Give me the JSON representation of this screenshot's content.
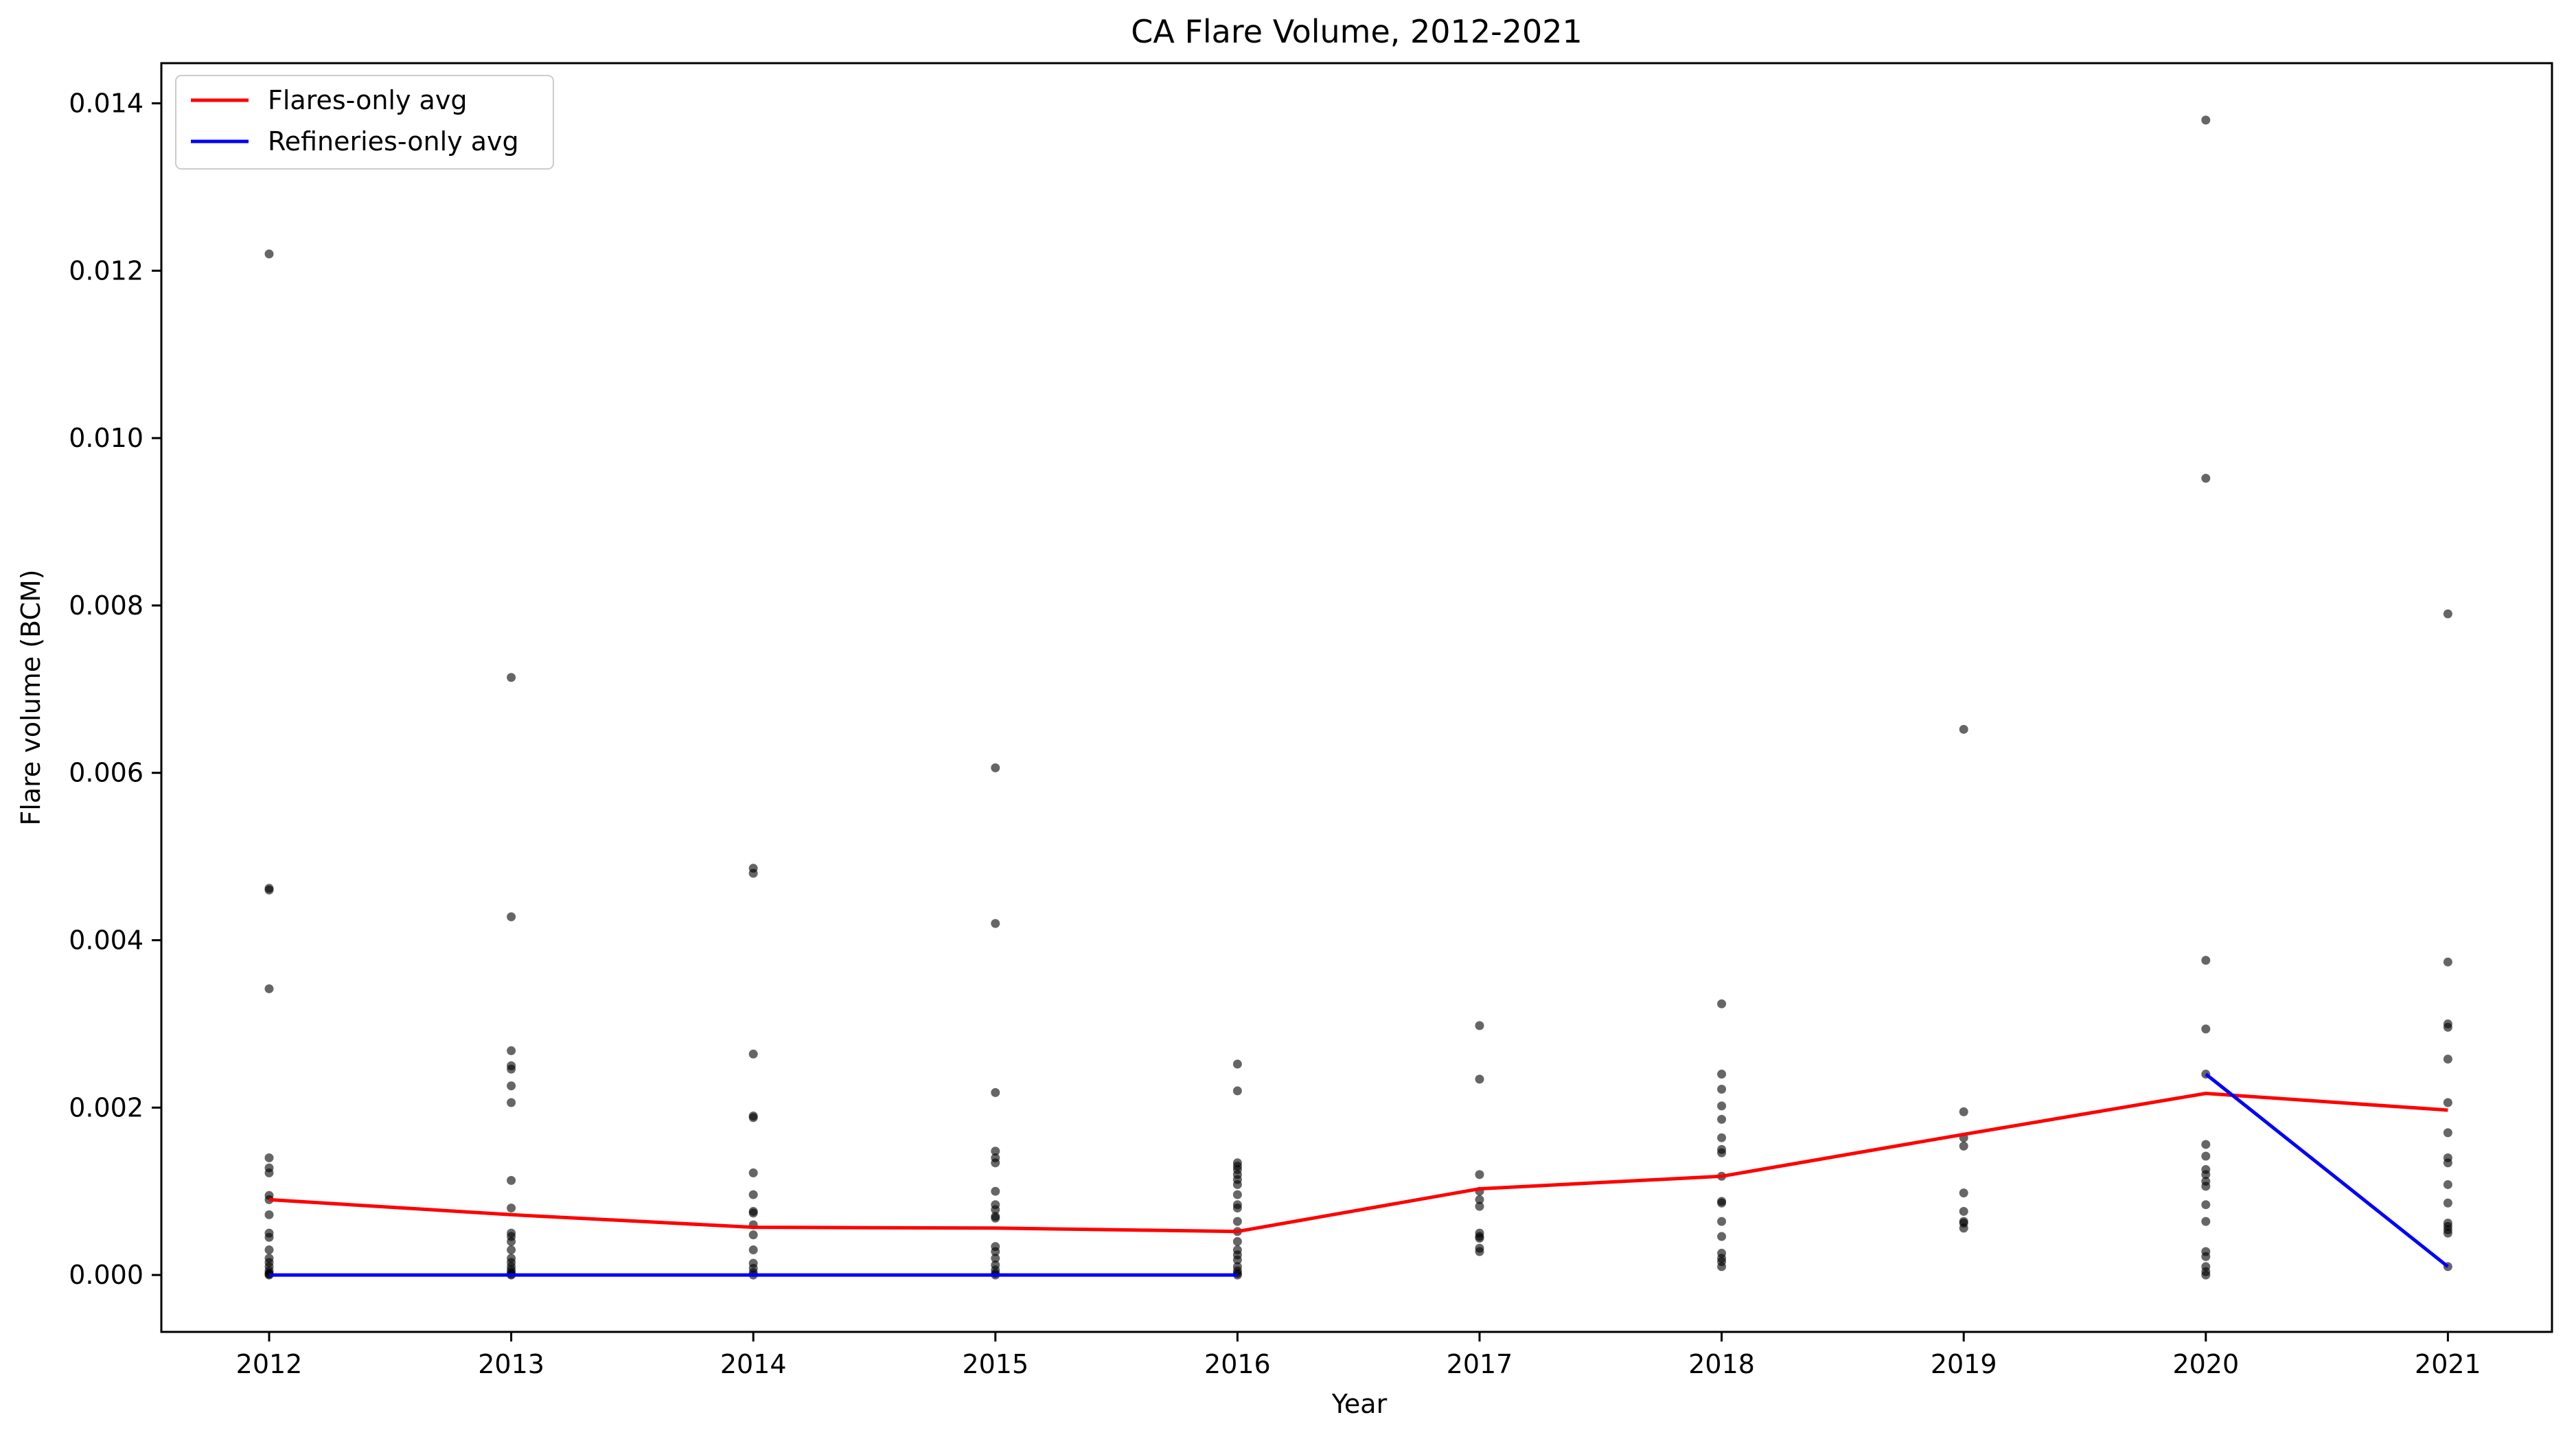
{
  "chart_data": {
    "type": "scatter",
    "title": "CA Flare Volume, 2012-2021",
    "xlabel": "Year",
    "ylabel": "Flare volume (BCM)",
    "categories": [
      "2012",
      "2013",
      "2014",
      "2015",
      "2016",
      "2017",
      "2018",
      "2019",
      "2020",
      "2021"
    ],
    "ylim": [
      -0.00068,
      0.01448
    ],
    "y_ticks": [
      "0.000",
      "0.002",
      "0.004",
      "0.006",
      "0.008",
      "0.010",
      "0.012",
      "0.014"
    ],
    "grid": false,
    "legend_position": "top-left",
    "scatter_points": {
      "2012": [
        0.0122,
        0.00462,
        0.0046,
        0.00342,
        0.0014,
        0.00128,
        0.00122,
        0.00095,
        0.0009,
        0.00072,
        0.0005,
        0.00045,
        0.0003,
        0.0002,
        0.00015,
        0.0001,
        5e-05,
        2e-05,
        1e-05,
        0.0
      ],
      "2013": [
        0.00714,
        0.00428,
        0.00268,
        0.0025,
        0.00246,
        0.00226,
        0.00206,
        0.00113,
        0.0008,
        0.0005,
        0.00046,
        0.0004,
        0.0003,
        0.0002,
        0.00015,
        0.0001,
        6e-05,
        3e-05,
        1e-05,
        0.0
      ],
      "2014": [
        0.00486,
        0.0048,
        0.00264,
        0.0019,
        0.00188,
        0.00122,
        0.00096,
        0.00076,
        0.00074,
        0.0006,
        0.00048,
        0.0003,
        0.00014,
        8e-05,
        3e-05,
        0.0
      ],
      "2015": [
        0.00606,
        0.0042,
        0.00218,
        0.00148,
        0.0014,
        0.00134,
        0.001,
        0.00084,
        0.00078,
        0.0007,
        0.00068,
        0.00034,
        0.00028,
        0.0002,
        0.00012,
        6e-05,
        2e-05,
        0.0
      ],
      "2016": [
        0.00252,
        0.0022,
        0.00134,
        0.0013,
        0.00126,
        0.0012,
        0.00114,
        0.00108,
        0.00096,
        0.00084,
        0.0008,
        0.00064,
        0.00052,
        0.0004,
        0.0003,
        0.00024,
        0.00018,
        0.0001,
        5e-05,
        2e-05,
        0.0
      ],
      "2017": [
        0.00298,
        0.00234,
        0.0012,
        0.001,
        0.0009,
        0.00082,
        0.0005,
        0.00046,
        0.00044,
        0.00032,
        0.00028
      ],
      "2018": [
        0.00324,
        0.0024,
        0.00222,
        0.00202,
        0.00186,
        0.00164,
        0.0015,
        0.00146,
        0.00118,
        0.00088,
        0.00086,
        0.00064,
        0.00046,
        0.00026,
        0.0002,
        0.00016,
        0.0001
      ],
      "2019": [
        0.00652,
        0.00195,
        0.00164,
        0.00154,
        0.00098,
        0.00076,
        0.00064,
        0.00062,
        0.00056
      ],
      "2020": [
        0.0138,
        0.00952,
        0.00376,
        0.00294,
        0.0024,
        0.00156,
        0.00142,
        0.00126,
        0.0012,
        0.00112,
        0.00106,
        0.00084,
        0.00064,
        0.00028,
        0.00022,
        0.0001,
        4e-05,
        0.0
      ],
      "2021": [
        0.0079,
        0.00374,
        0.003,
        0.00296,
        0.00258,
        0.00206,
        0.0017,
        0.0014,
        0.00134,
        0.00108,
        0.00086,
        0.00062,
        0.00058,
        0.00054,
        0.0005,
        0.0001
      ]
    },
    "scatter_color": "#000000",
    "series": [
      {
        "name": "Flares-only avg",
        "color": "#ff0000",
        "values": [
          0.0009,
          0.00072,
          0.00057,
          0.00056,
          0.00052,
          0.00103,
          0.00118,
          0.00168,
          0.00217,
          0.00197
        ]
      },
      {
        "name": "Refineries-only avg",
        "color": "#0000ff",
        "values": [
          0.0,
          0.0,
          0.0,
          0.0,
          0.0,
          null,
          null,
          null,
          0.0024,
          0.0001
        ]
      }
    ]
  }
}
